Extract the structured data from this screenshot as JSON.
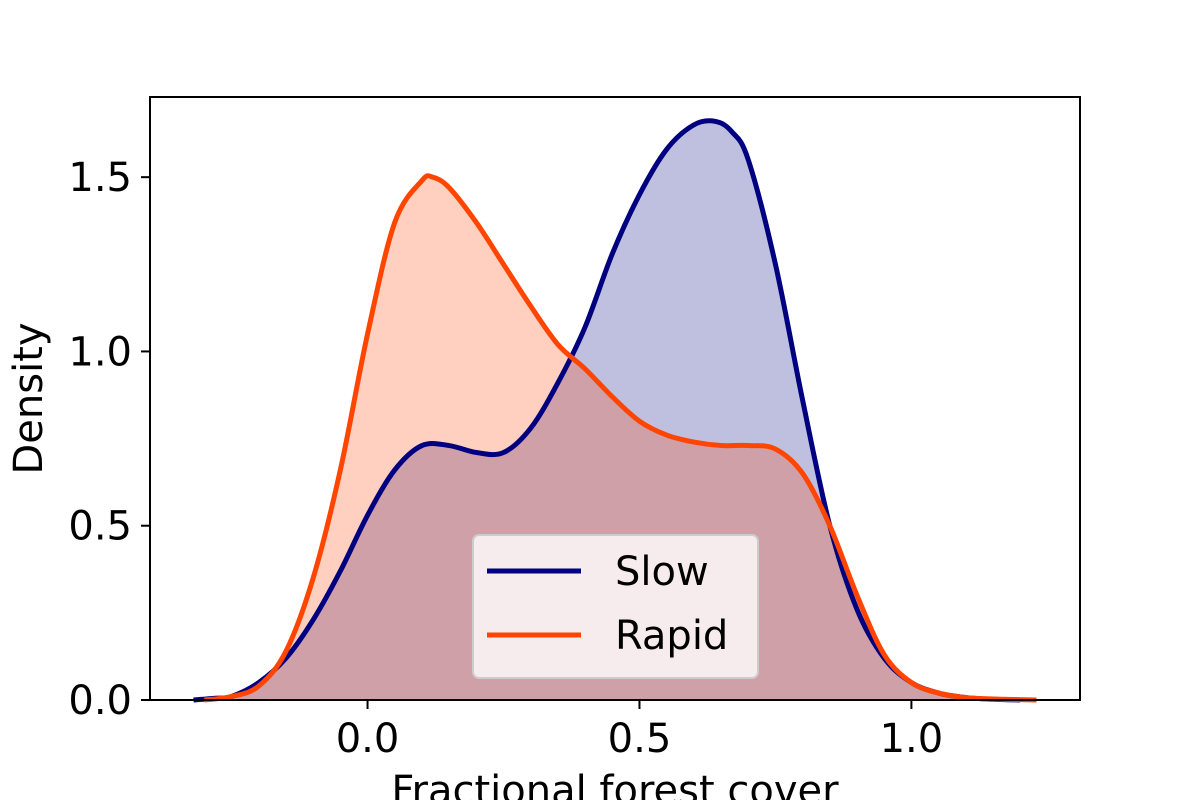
{
  "chart_data": {
    "type": "area",
    "chart_subtype": "kde-density",
    "xlabel": "Fractional forest cover",
    "ylabel": "Density",
    "xlim": [
      -0.4,
      1.31
    ],
    "ylim": [
      0.0,
      1.73
    ],
    "xticks": [
      0.0,
      0.5,
      1.0
    ],
    "xtick_labels": [
      "0.0",
      "0.5",
      "1.0"
    ],
    "yticks": [
      0.0,
      0.5,
      1.0,
      1.5
    ],
    "ytick_labels": [
      "0.0",
      "0.5",
      "1.0",
      "1.5"
    ],
    "grid": false,
    "legend_position": "lower-center",
    "series": [
      {
        "name": "Slow",
        "color": "#000080",
        "fill_color": "#bcbfe0",
        "x": [
          -0.32,
          -0.28,
          -0.25,
          -0.2,
          -0.15,
          -0.1,
          -0.05,
          0.0,
          0.05,
          0.1,
          0.15,
          0.2,
          0.25,
          0.3,
          0.35,
          0.4,
          0.45,
          0.5,
          0.55,
          0.6,
          0.64,
          0.67,
          0.7,
          0.75,
          0.8,
          0.85,
          0.9,
          0.95,
          1.0,
          1.05,
          1.1,
          1.15,
          1.2
        ],
        "y": [
          0.0,
          0.005,
          0.01,
          0.05,
          0.12,
          0.23,
          0.37,
          0.53,
          0.66,
          0.73,
          0.73,
          0.71,
          0.71,
          0.78,
          0.91,
          1.07,
          1.28,
          1.45,
          1.58,
          1.65,
          1.66,
          1.63,
          1.55,
          1.25,
          0.86,
          0.5,
          0.26,
          0.12,
          0.05,
          0.02,
          0.007,
          0.002,
          0.0
        ]
      },
      {
        "name": "Rapid",
        "color": "#ff4500",
        "fill_color": "#fdccbd",
        "x": [
          -0.3,
          -0.25,
          -0.2,
          -0.15,
          -0.1,
          -0.05,
          0.0,
          0.05,
          0.1,
          0.12,
          0.15,
          0.2,
          0.25,
          0.3,
          0.35,
          0.4,
          0.45,
          0.5,
          0.55,
          0.6,
          0.65,
          0.7,
          0.75,
          0.8,
          0.85,
          0.9,
          0.95,
          1.0,
          1.05,
          1.1,
          1.15,
          1.2,
          1.23
        ],
        "y": [
          0.0,
          0.01,
          0.04,
          0.14,
          0.35,
          0.66,
          1.05,
          1.37,
          1.49,
          1.5,
          1.47,
          1.37,
          1.25,
          1.13,
          1.02,
          0.95,
          0.87,
          0.8,
          0.76,
          0.74,
          0.73,
          0.73,
          0.72,
          0.65,
          0.5,
          0.3,
          0.13,
          0.05,
          0.02,
          0.007,
          0.003,
          0.001,
          0.0
        ]
      }
    ]
  }
}
